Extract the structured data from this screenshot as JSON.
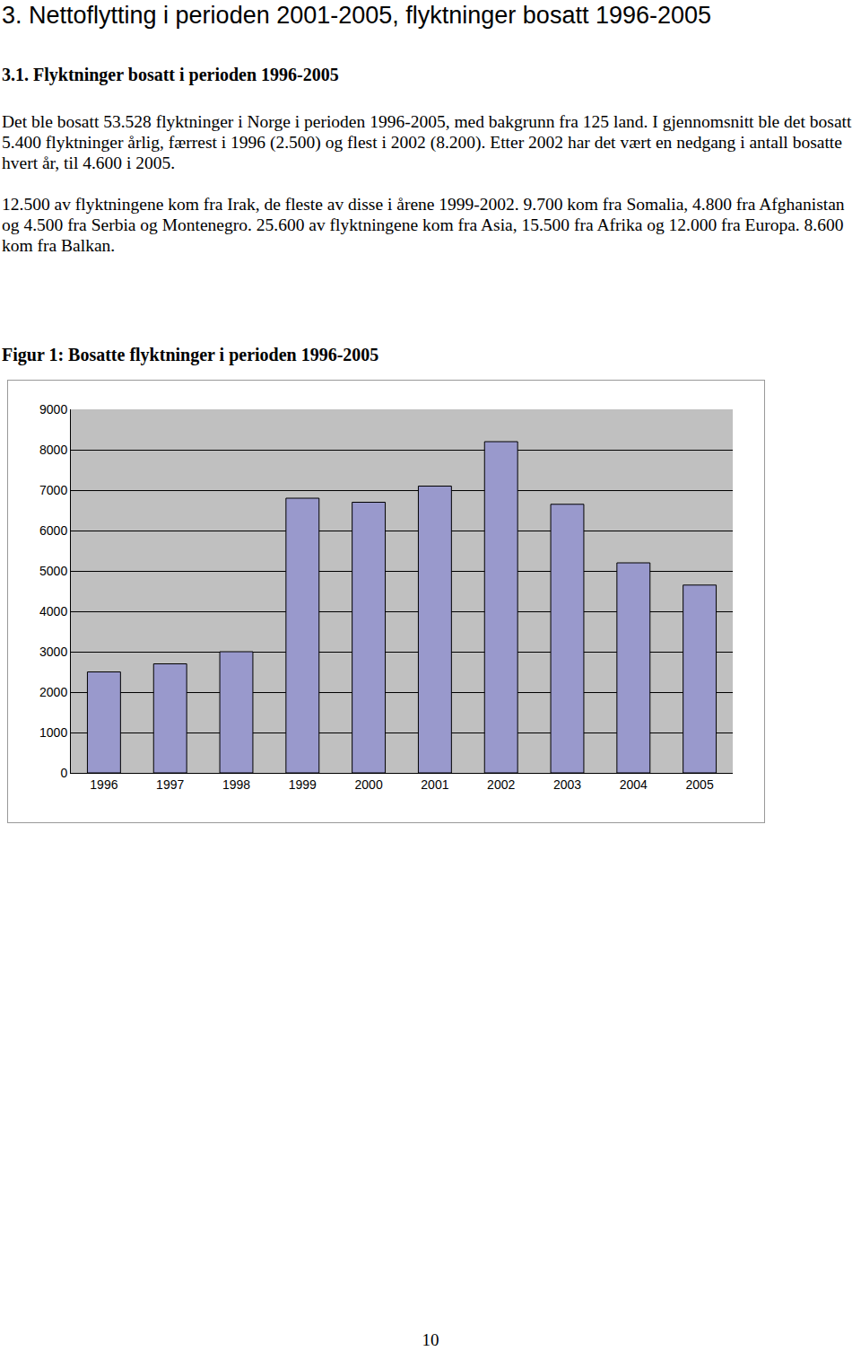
{
  "heading": "3. Nettoflytting i perioden 2001-2005, flyktninger bosatt 1996-2005",
  "subheading": "3.1. Flyktninger bosatt i perioden 1996-2005",
  "paragraphs": [
    "Det ble bosatt 53.528 flyktninger i Norge i perioden 1996-2005, med bakgrunn fra 125 land. I gjennomsnitt ble det bosatt 5.400 flyktninger årlig, færrest i 1996 (2.500) og flest i 2002 (8.200). Etter 2002 har det vært en nedgang i antall bosatte hvert år, til 4.600 i 2005.",
    "12.500 av flyktningene kom fra Irak, de fleste av disse i årene 1999-2002. 9.700 kom fra Somalia, 4.800 fra Afghanistan og 4.500 fra Serbia og Montenegro. 25.600 av flyktningene kom fra Asia, 15.500 fra Afrika og 12.000 fra Europa. 8.600 kom fra Balkan."
  ],
  "figure_title": "Figur 1: Bosatte flyktninger i perioden 1996-2005",
  "chart_data": {
    "type": "bar",
    "categories": [
      "1996",
      "1997",
      "1998",
      "1999",
      "2000",
      "2001",
      "2002",
      "2003",
      "2004",
      "2005"
    ],
    "values": [
      2500,
      2700,
      3000,
      6800,
      6700,
      7100,
      8200,
      6650,
      5200,
      4650
    ],
    "color": "#9999cc",
    "ylim": [
      0,
      9000
    ],
    "yticks": [
      0,
      1000,
      2000,
      3000,
      4000,
      5000,
      6000,
      7000,
      8000,
      9000
    ],
    "grid": true
  },
  "page_number": "10"
}
